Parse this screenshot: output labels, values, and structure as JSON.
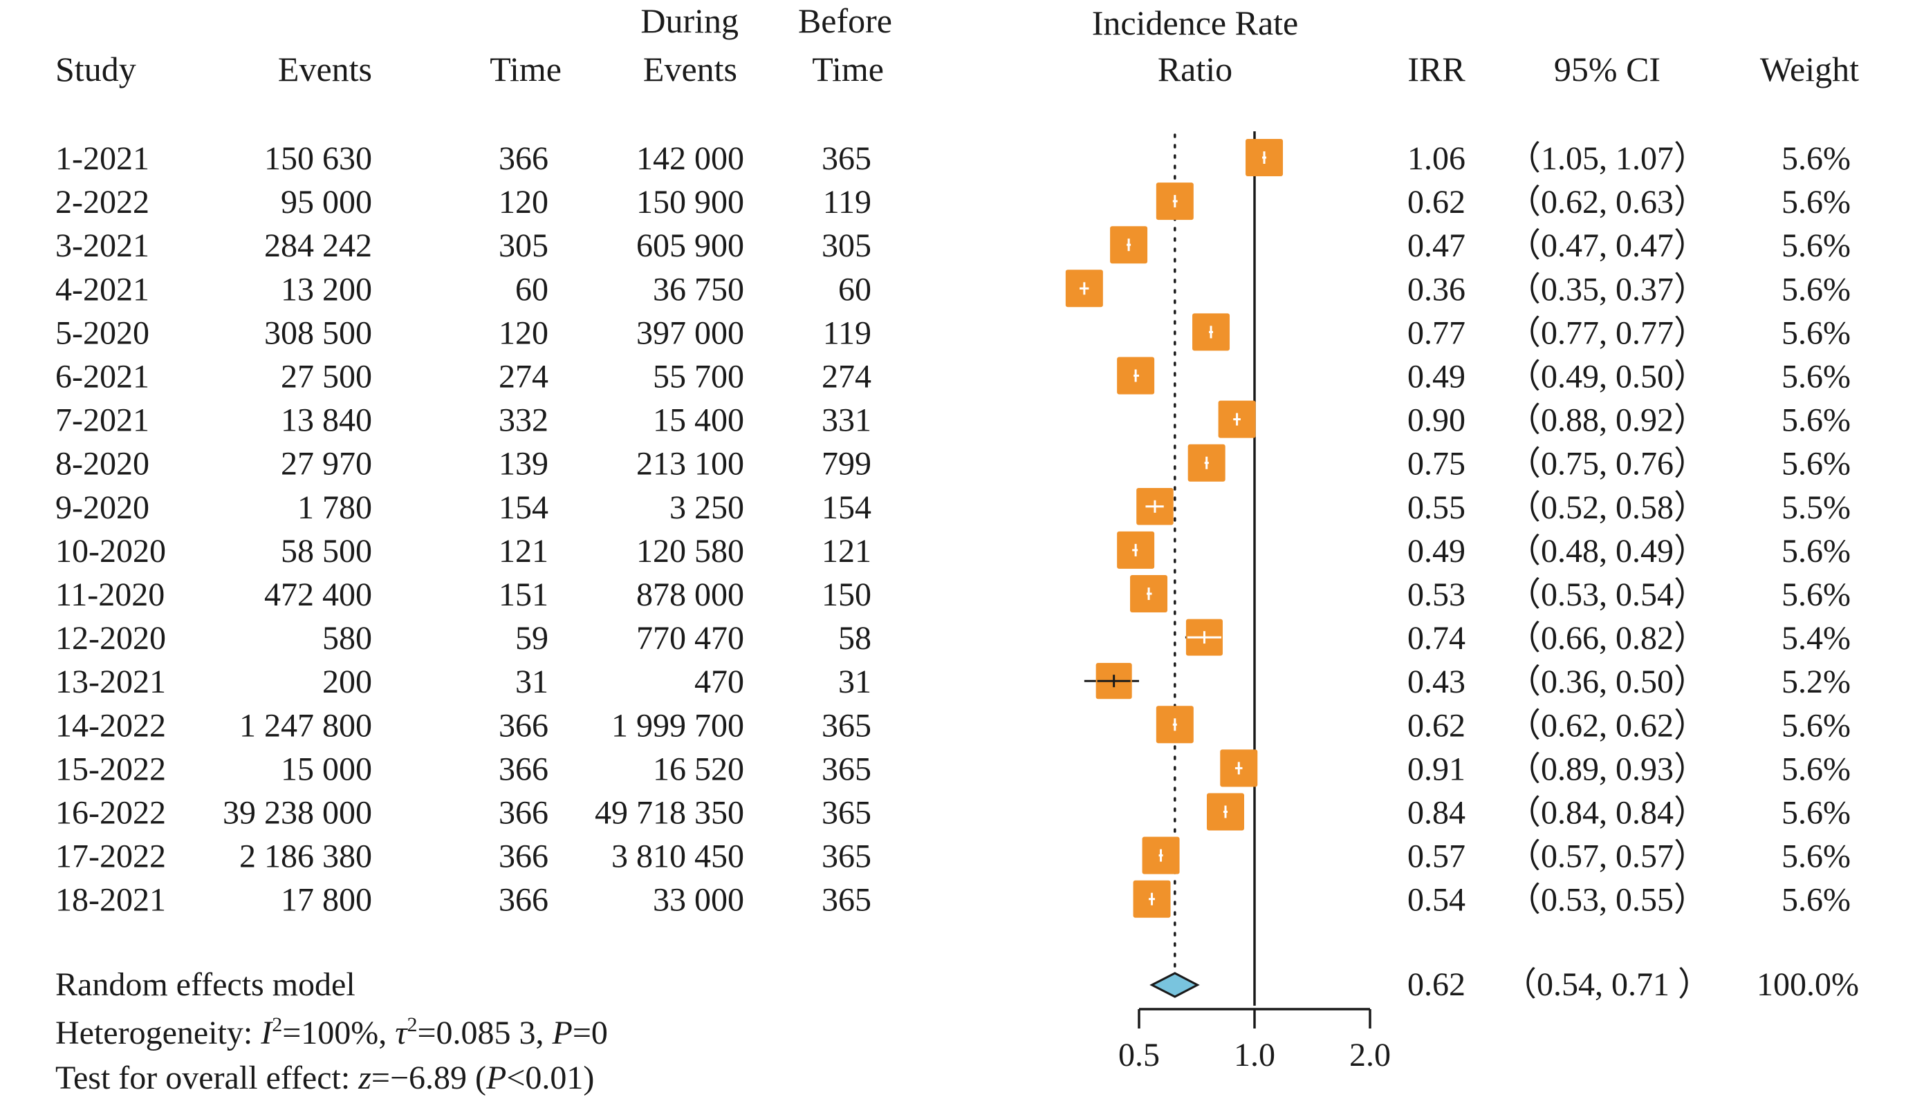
{
  "chart_data": {
    "type": "forest",
    "headers": {
      "study": "Study",
      "during": "During",
      "before": "Before",
      "events1": "Events",
      "time1": "Time",
      "events2": "Events",
      "time2": "Time",
      "irr_title_1": "Incidence Rate",
      "irr_title_2": "Ratio",
      "irr": "IRR",
      "ci": "95% CI",
      "weight": "Weight"
    },
    "studies": [
      {
        "study": "1-2021",
        "during_events": "150 630",
        "during_time": "366",
        "before_events": "142 000",
        "before_time": "365",
        "irr": 1.06,
        "lower": 1.05,
        "upper": 1.07,
        "irr_text": "1.06",
        "ci_text": "（1.05, 1.07）",
        "weight_text": "5.6%",
        "weight": 5.6
      },
      {
        "study": "2-2022",
        "during_events": "95 000",
        "during_time": "120",
        "before_events": "150 900",
        "before_time": "119",
        "irr": 0.62,
        "lower": 0.62,
        "upper": 0.63,
        "irr_text": "0.62",
        "ci_text": "（0.62, 0.63）",
        "weight_text": "5.6%",
        "weight": 5.6
      },
      {
        "study": "3-2021",
        "during_events": "284 242",
        "during_time": "305",
        "before_events": "605 900",
        "before_time": "305",
        "irr": 0.47,
        "lower": 0.47,
        "upper": 0.47,
        "irr_text": "0.47",
        "ci_text": "（0.47, 0.47）",
        "weight_text": "5.6%",
        "weight": 5.6
      },
      {
        "study": "4-2021",
        "during_events": "13 200",
        "during_time": "60",
        "before_events": "36 750",
        "before_time": "60",
        "irr": 0.36,
        "lower": 0.35,
        "upper": 0.37,
        "irr_text": "0.36",
        "ci_text": "（0.35, 0.37）",
        "weight_text": "5.6%",
        "weight": 5.6
      },
      {
        "study": "5-2020",
        "during_events": "308 500",
        "during_time": "120",
        "before_events": "397 000",
        "before_time": "119",
        "irr": 0.77,
        "lower": 0.77,
        "upper": 0.77,
        "irr_text": "0.77",
        "ci_text": "（0.77, 0.77）",
        "weight_text": "5.6%",
        "weight": 5.6
      },
      {
        "study": "6-2021",
        "during_events": "27 500",
        "during_time": "274",
        "before_events": "55 700",
        "before_time": "274",
        "irr": 0.49,
        "lower": 0.49,
        "upper": 0.5,
        "irr_text": "0.49",
        "ci_text": "（0.49, 0.50）",
        "weight_text": "5.6%",
        "weight": 5.6
      },
      {
        "study": "7-2021",
        "during_events": "13 840",
        "during_time": "332",
        "before_events": "15 400",
        "before_time": "331",
        "irr": 0.9,
        "lower": 0.88,
        "upper": 0.92,
        "irr_text": "0.90",
        "ci_text": "（0.88, 0.92）",
        "weight_text": "5.6%",
        "weight": 5.6
      },
      {
        "study": "8-2020",
        "during_events": "27 970",
        "during_time": "139",
        "before_events": "213 100",
        "before_time": "799",
        "irr": 0.75,
        "lower": 0.75,
        "upper": 0.76,
        "irr_text": "0.75",
        "ci_text": "（0.75, 0.76）",
        "weight_text": "5.6%",
        "weight": 5.6
      },
      {
        "study": "9-2020",
        "during_events": "1 780",
        "during_time": "154",
        "before_events": "3 250",
        "before_time": "154",
        "irr": 0.55,
        "lower": 0.52,
        "upper": 0.58,
        "irr_text": "0.55",
        "ci_text": "（0.52, 0.58）",
        "weight_text": "5.5%",
        "weight": 5.5
      },
      {
        "study": "10-2020",
        "during_events": "58 500",
        "during_time": "121",
        "before_events": "120 580",
        "before_time": "121",
        "irr": 0.49,
        "lower": 0.48,
        "upper": 0.49,
        "irr_text": "0.49",
        "ci_text": "（0.48, 0.49）",
        "weight_text": "5.6%",
        "weight": 5.6
      },
      {
        "study": "11-2020",
        "during_events": "472 400",
        "during_time": "151",
        "before_events": "878 000",
        "before_time": "150",
        "irr": 0.53,
        "lower": 0.53,
        "upper": 0.54,
        "irr_text": "0.53",
        "ci_text": "（0.53, 0.54）",
        "weight_text": "5.6%",
        "weight": 5.6
      },
      {
        "study": "12-2020",
        "during_events": "580",
        "during_time": "59",
        "before_events": "770 470",
        "before_time": "58",
        "irr": 0.74,
        "lower": 0.66,
        "upper": 0.82,
        "irr_text": "0.74",
        "ci_text": "（0.66, 0.82）",
        "weight_text": "5.4%",
        "weight": 5.4
      },
      {
        "study": "13-2021",
        "during_events": "200",
        "during_time": "31",
        "before_events": "470",
        "before_time": "31",
        "irr": 0.43,
        "lower": 0.36,
        "upper": 0.5,
        "irr_text": "0.43",
        "ci_text": "（0.36, 0.50）",
        "weight_text": "5.2%",
        "weight": 5.2
      },
      {
        "study": "14-2022",
        "during_events": "1 247 800",
        "during_time": "366",
        "before_events": "1 999 700",
        "before_time": "365",
        "irr": 0.62,
        "lower": 0.62,
        "upper": 0.62,
        "irr_text": "0.62",
        "ci_text": "（0.62, 0.62）",
        "weight_text": "5.6%",
        "weight": 5.6
      },
      {
        "study": "15-2022",
        "during_events": "15 000",
        "during_time": "366",
        "before_events": "16 520",
        "before_time": "365",
        "irr": 0.91,
        "lower": 0.89,
        "upper": 0.93,
        "irr_text": "0.91",
        "ci_text": "（0.89, 0.93）",
        "weight_text": "5.6%",
        "weight": 5.6
      },
      {
        "study": "16-2022",
        "during_events": "39 238 000",
        "during_time": "366",
        "before_events": "49 718 350",
        "before_time": "365",
        "irr": 0.84,
        "lower": 0.84,
        "upper": 0.84,
        "irr_text": "0.84",
        "ci_text": "（0.84, 0.84）",
        "weight_text": "5.6%",
        "weight": 5.6
      },
      {
        "study": "17-2022",
        "during_events": "2 186 380",
        "during_time": "366",
        "before_events": "3 810 450",
        "before_time": "365",
        "irr": 0.57,
        "lower": 0.57,
        "upper": 0.57,
        "irr_text": "0.57",
        "ci_text": "（0.57, 0.57）",
        "weight_text": "5.6%",
        "weight": 5.6
      },
      {
        "study": "18-2021",
        "during_events": "17 800",
        "during_time": "366",
        "before_events": "33 000",
        "before_time": "365",
        "irr": 0.54,
        "lower": 0.53,
        "upper": 0.55,
        "irr_text": "0.54",
        "ci_text": "（0.53, 0.55）",
        "weight_text": "5.6%",
        "weight": 5.6
      }
    ],
    "summary": {
      "label": "Random effects model",
      "irr": 0.62,
      "lower": 0.54,
      "upper": 0.71,
      "irr_text": "0.62",
      "ci_text": "（0.54, 0.71 ）",
      "weight_text": "100.0%"
    },
    "heterogeneity": {
      "prefix": "Heterogeneity: ",
      "i2_sym": "I",
      "i2_val": "=100%, ",
      "tau_sym": "τ",
      "tau_val": "=0.085 3, ",
      "p_sym": "P",
      "p_val": "=0"
    },
    "overall_effect": {
      "prefix": "Test for overall effect: ",
      "z_sym": "z",
      "z_val": "=−6.89 (",
      "p_sym": "P",
      "p_val": "<0.01)"
    },
    "axis": {
      "scale": "log",
      "min": 0.25,
      "max": 2.0,
      "ticks": [
        0.5,
        1.0,
        2.0
      ],
      "tick_labels": [
        "0.5",
        "1.0",
        "2.0"
      ],
      "null_line": 1.0,
      "pooled_line": 0.62
    },
    "colors": {
      "marker": "#f0922b",
      "diamond": "#79c4de",
      "line": "#1a1a1a"
    }
  }
}
